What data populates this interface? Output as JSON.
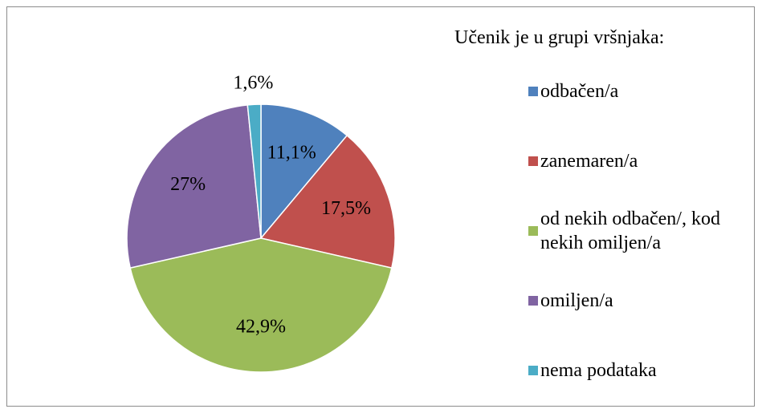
{
  "chart_data": {
    "type": "pie",
    "legend_title": "Učenik je u grupi vršnjaka:",
    "categories": [
      "odbačen/a",
      "zanemaren/a",
      "od nekih odbačen/, kod nekih omiljen/a",
      "omiljen/a",
      "nema podataka"
    ],
    "values": [
      11.1,
      17.5,
      42.9,
      27,
      1.6
    ],
    "value_labels": [
      "11,1%",
      "17,5%",
      "42,9%",
      "27%",
      "1,6%"
    ],
    "colors": [
      "#4f81bd",
      "#c0504d",
      "#9bbb59",
      "#8064a2",
      "#4bacc6"
    ],
    "legend": "right"
  }
}
